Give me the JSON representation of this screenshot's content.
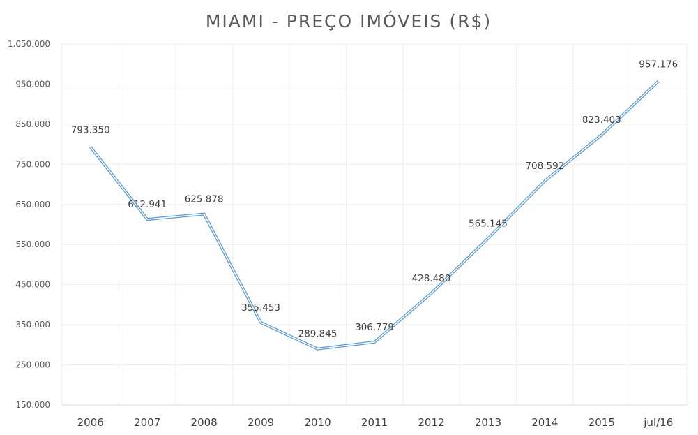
{
  "chart_data": {
    "type": "line",
    "title": "MIAMI - PREÇO IMÓVEIS (R$)",
    "xlabel": "",
    "ylabel": "",
    "categories": [
      "2006",
      "2007",
      "2008",
      "2009",
      "2010",
      "2011",
      "2012",
      "2013",
      "2014",
      "2015",
      "jul/16"
    ],
    "series": [
      {
        "values": [
          793350,
          612941,
          625878,
          355453,
          289845,
          306779,
          428480,
          565145,
          708592,
          823403,
          957176
        ],
        "labels": [
          "793.350",
          "612.941",
          "625.878",
          "355.453",
          "289.845",
          "306.779",
          "428.480",
          "565.145",
          "708.592",
          "823.403",
          "957.176"
        ]
      }
    ],
    "ylim": [
      150000,
      1050000
    ],
    "yticks": [
      150000,
      250000,
      350000,
      450000,
      550000,
      650000,
      750000,
      850000,
      950000,
      1050000
    ],
    "ytick_labels": [
      "150.000",
      "250.000",
      "350.000",
      "450.000",
      "550.000",
      "650.000",
      "750.000",
      "850.000",
      "950.000",
      "1.050.000"
    ],
    "grid": true,
    "legend": "none",
    "colors": {
      "line": "#5b9bd5",
      "line_inner": "#ffffff"
    }
  }
}
